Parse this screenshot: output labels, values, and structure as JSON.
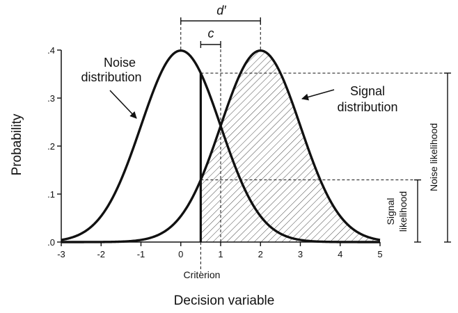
{
  "chart_data": {
    "type": "line",
    "title": "",
    "xlabel": "Decision variable",
    "ylabel": "Probability",
    "xlim": [
      -3,
      5
    ],
    "ylim": [
      0,
      0.4
    ],
    "x_ticks": [
      "-3",
      "-2",
      "-1",
      "0",
      "1",
      "2",
      "3",
      "4",
      "5"
    ],
    "y_ticks": [
      ".0",
      ".1",
      ".2",
      ".3",
      ".4"
    ],
    "grid": false,
    "series": [
      {
        "name": "Noise distribution",
        "distribution": "normal",
        "mean": 0,
        "sd": 1
      },
      {
        "name": "Signal distribution",
        "distribution": "normal",
        "mean": 2,
        "sd": 1
      }
    ],
    "criterion": 0.5,
    "shaded_region": "area under signal distribution right of criterion",
    "annotations": {
      "d_prime": "d′",
      "c": "c",
      "noise_label": [
        "Noise",
        "distribution"
      ],
      "signal_label": [
        "Signal",
        "distribution"
      ],
      "criterion_label": "Criterion",
      "noise_likelihood": "Noise likelihood",
      "signal_likelihood": [
        "Signal",
        "likelihood"
      ]
    },
    "colors": {
      "ink": "#111111",
      "background": "#ffffff"
    }
  }
}
